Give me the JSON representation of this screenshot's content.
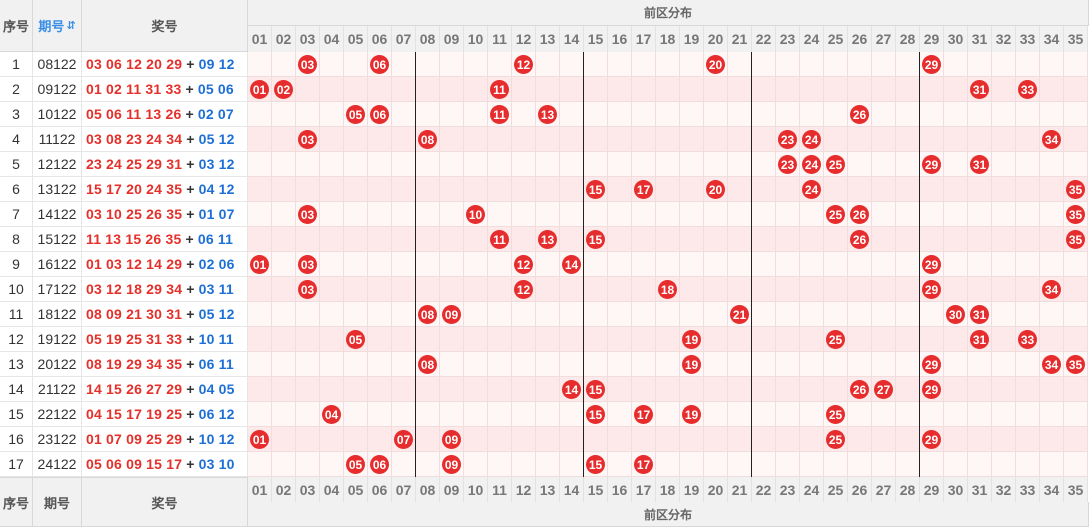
{
  "header": {
    "seq_label": "序号",
    "period_label": "期号",
    "sort_icon_text": "⇵",
    "award_label": "奖号",
    "zone_label": "前区分布"
  },
  "footer": {
    "seq_label": "序号",
    "period_label": "期号",
    "award_label": "奖号",
    "zone_label": "前区分布"
  },
  "columns": [
    "01",
    "02",
    "03",
    "04",
    "05",
    "06",
    "07",
    "08",
    "09",
    "10",
    "11",
    "12",
    "13",
    "14",
    "15",
    "16",
    "17",
    "18",
    "19",
    "20",
    "21",
    "22",
    "23",
    "24",
    "25",
    "26",
    "27",
    "28",
    "29",
    "30",
    "31",
    "32",
    "33",
    "34",
    "35"
  ],
  "colors": {
    "ball": "#e62c2c",
    "front": "#e5302a",
    "back": "#1d6fd6",
    "row_alt": "#fde9e9",
    "row": "#fff6f6"
  },
  "rows": [
    {
      "seq": "1",
      "period": "08122",
      "front": [
        "03",
        "06",
        "12",
        "20",
        "29"
      ],
      "plus": "+",
      "back": [
        "09",
        "12"
      ]
    },
    {
      "seq": "2",
      "period": "09122",
      "front": [
        "01",
        "02",
        "11",
        "31",
        "33"
      ],
      "plus": "+",
      "back": [
        "05",
        "06"
      ]
    },
    {
      "seq": "3",
      "period": "10122",
      "front": [
        "05",
        "06",
        "11",
        "13",
        "26"
      ],
      "plus": "+",
      "back": [
        "02",
        "07"
      ]
    },
    {
      "seq": "4",
      "period": "11122",
      "front": [
        "03",
        "08",
        "23",
        "24",
        "34"
      ],
      "plus": "+",
      "back": [
        "05",
        "12"
      ]
    },
    {
      "seq": "5",
      "period": "12122",
      "front": [
        "23",
        "24",
        "25",
        "29",
        "31"
      ],
      "plus": "+",
      "back": [
        "03",
        "12"
      ]
    },
    {
      "seq": "6",
      "period": "13122",
      "front": [
        "15",
        "17",
        "20",
        "24",
        "35"
      ],
      "plus": "+",
      "back": [
        "04",
        "12"
      ]
    },
    {
      "seq": "7",
      "period": "14122",
      "front": [
        "03",
        "10",
        "25",
        "26",
        "35"
      ],
      "plus": "+",
      "back": [
        "01",
        "07"
      ]
    },
    {
      "seq": "8",
      "period": "15122",
      "front": [
        "11",
        "13",
        "15",
        "26",
        "35"
      ],
      "plus": "+",
      "back": [
        "06",
        "11"
      ]
    },
    {
      "seq": "9",
      "period": "16122",
      "front": [
        "01",
        "03",
        "12",
        "14",
        "29"
      ],
      "plus": "+",
      "back": [
        "02",
        "06"
      ]
    },
    {
      "seq": "10",
      "period": "17122",
      "front": [
        "03",
        "12",
        "18",
        "29",
        "34"
      ],
      "plus": "+",
      "back": [
        "03",
        "11"
      ]
    },
    {
      "seq": "11",
      "period": "18122",
      "front": [
        "08",
        "09",
        "21",
        "30",
        "31"
      ],
      "plus": "+",
      "back": [
        "05",
        "12"
      ]
    },
    {
      "seq": "12",
      "period": "19122",
      "front": [
        "05",
        "19",
        "25",
        "31",
        "33"
      ],
      "plus": "+",
      "back": [
        "10",
        "11"
      ]
    },
    {
      "seq": "13",
      "period": "20122",
      "front": [
        "08",
        "19",
        "29",
        "34",
        "35"
      ],
      "plus": "+",
      "back": [
        "06",
        "11"
      ]
    },
    {
      "seq": "14",
      "period": "21122",
      "front": [
        "14",
        "15",
        "26",
        "27",
        "29"
      ],
      "plus": "+",
      "back": [
        "04",
        "05"
      ]
    },
    {
      "seq": "15",
      "period": "22122",
      "front": [
        "04",
        "15",
        "17",
        "19",
        "25"
      ],
      "plus": "+",
      "back": [
        "06",
        "12"
      ]
    },
    {
      "seq": "16",
      "period": "23122",
      "front": [
        "01",
        "07",
        "09",
        "25",
        "29"
      ],
      "plus": "+",
      "back": [
        "10",
        "12"
      ]
    },
    {
      "seq": "17",
      "period": "24122",
      "front": [
        "05",
        "06",
        "09",
        "15",
        "17"
      ],
      "plus": "+",
      "back": [
        "03",
        "10"
      ]
    }
  ]
}
